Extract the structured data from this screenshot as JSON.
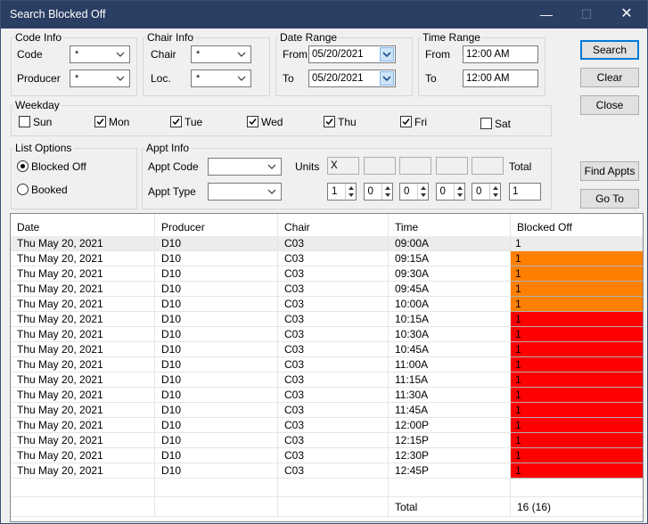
{
  "window": {
    "title": "Search Blocked Off",
    "minimize": "—",
    "maximize": "☐",
    "close": "✕"
  },
  "code_info": {
    "legend": "Code Info",
    "code_label": "Code",
    "code_value": "*",
    "producer_label": "Producer",
    "producer_value": "*"
  },
  "chair_info": {
    "legend": "Chair Info",
    "chair_label": "Chair",
    "chair_value": "*",
    "loc_label": "Loc.",
    "loc_value": "*"
  },
  "date_range": {
    "legend": "Date Range",
    "from_label": "From",
    "from_value": "05/20/2021",
    "to_label": "To",
    "to_value": "05/20/2021"
  },
  "time_range": {
    "legend": "Time Range",
    "from_label": "From",
    "from_value": "12:00 AM",
    "to_label": "To",
    "to_value": "12:00 AM"
  },
  "buttons": {
    "search": "Search",
    "clear": "Clear",
    "close": "Close",
    "find_appts": "Find Appts",
    "go_to": "Go To"
  },
  "weekday": {
    "legend": "Weekday",
    "days": [
      {
        "label": "Sun",
        "checked": false
      },
      {
        "label": "Mon",
        "checked": true
      },
      {
        "label": "Tue",
        "checked": true
      },
      {
        "label": "Wed",
        "checked": true
      },
      {
        "label": "Thu",
        "checked": true
      },
      {
        "label": "Fri",
        "checked": true
      },
      {
        "label": "Sat",
        "checked": false
      }
    ]
  },
  "list_options": {
    "legend": "List Options",
    "blocked_off": "Blocked Off",
    "booked": "Booked",
    "selected": "blocked_off"
  },
  "appt_info": {
    "legend": "Appt Info",
    "appt_code_label": "Appt Code",
    "appt_code_value": "",
    "appt_type_label": "Appt Type",
    "appt_type_value": "",
    "units_label": "Units",
    "total_label": "Total",
    "units_boxes": [
      "X",
      "",
      "",
      "",
      ""
    ],
    "spinners": [
      "1",
      "0",
      "0",
      "0",
      "0"
    ],
    "total_value": "1"
  },
  "table": {
    "columns": [
      "Date",
      "Producer",
      "Chair",
      "Time",
      "Blocked Off"
    ],
    "rows": [
      {
        "date": "Thu  May 20, 2021",
        "producer": "D10",
        "chair": "C03",
        "time": "09:00A",
        "blocked": "1",
        "status": "selected"
      },
      {
        "date": "Thu  May 20, 2021",
        "producer": "D10",
        "chair": "C03",
        "time": "09:15A",
        "blocked": "1",
        "status": "orange"
      },
      {
        "date": "Thu  May 20, 2021",
        "producer": "D10",
        "chair": "C03",
        "time": "09:30A",
        "blocked": "1",
        "status": "orange"
      },
      {
        "date": "Thu  May 20, 2021",
        "producer": "D10",
        "chair": "C03",
        "time": "09:45A",
        "blocked": "1",
        "status": "orange"
      },
      {
        "date": "Thu  May 20, 2021",
        "producer": "D10",
        "chair": "C03",
        "time": "10:00A",
        "blocked": "1",
        "status": "orange"
      },
      {
        "date": "Thu  May 20, 2021",
        "producer": "D10",
        "chair": "C03",
        "time": "10:15A",
        "blocked": "1",
        "status": "red"
      },
      {
        "date": "Thu  May 20, 2021",
        "producer": "D10",
        "chair": "C03",
        "time": "10:30A",
        "blocked": "1",
        "status": "red"
      },
      {
        "date": "Thu  May 20, 2021",
        "producer": "D10",
        "chair": "C03",
        "time": "10:45A",
        "blocked": "1",
        "status": "red"
      },
      {
        "date": "Thu  May 20, 2021",
        "producer": "D10",
        "chair": "C03",
        "time": "11:00A",
        "blocked": "1",
        "status": "red"
      },
      {
        "date": "Thu  May 20, 2021",
        "producer": "D10",
        "chair": "C03",
        "time": "11:15A",
        "blocked": "1",
        "status": "red"
      },
      {
        "date": "Thu  May 20, 2021",
        "producer": "D10",
        "chair": "C03",
        "time": "11:30A",
        "blocked": "1",
        "status": "red"
      },
      {
        "date": "Thu  May 20, 2021",
        "producer": "D10",
        "chair": "C03",
        "time": "11:45A",
        "blocked": "1",
        "status": "red"
      },
      {
        "date": "Thu  May 20, 2021",
        "producer": "D10",
        "chair": "C03",
        "time": "12:00P",
        "blocked": "1",
        "status": "red"
      },
      {
        "date": "Thu  May 20, 2021",
        "producer": "D10",
        "chair": "C03",
        "time": "12:15P",
        "blocked": "1",
        "status": "red"
      },
      {
        "date": "Thu  May 20, 2021",
        "producer": "D10",
        "chair": "C03",
        "time": "12:30P",
        "blocked": "1",
        "status": "red"
      },
      {
        "date": "Thu  May 20, 2021",
        "producer": "D10",
        "chair": "C03",
        "time": "12:45P",
        "blocked": "1",
        "status": "red"
      }
    ],
    "footer": {
      "total_label": "Total",
      "total_value": "16 (16)"
    }
  },
  "colors": {
    "titlebar": "#2b3e63",
    "orange": "#ff8000",
    "red": "#ff0000",
    "selected_row": "#ececec",
    "accent": "#0078d7"
  }
}
